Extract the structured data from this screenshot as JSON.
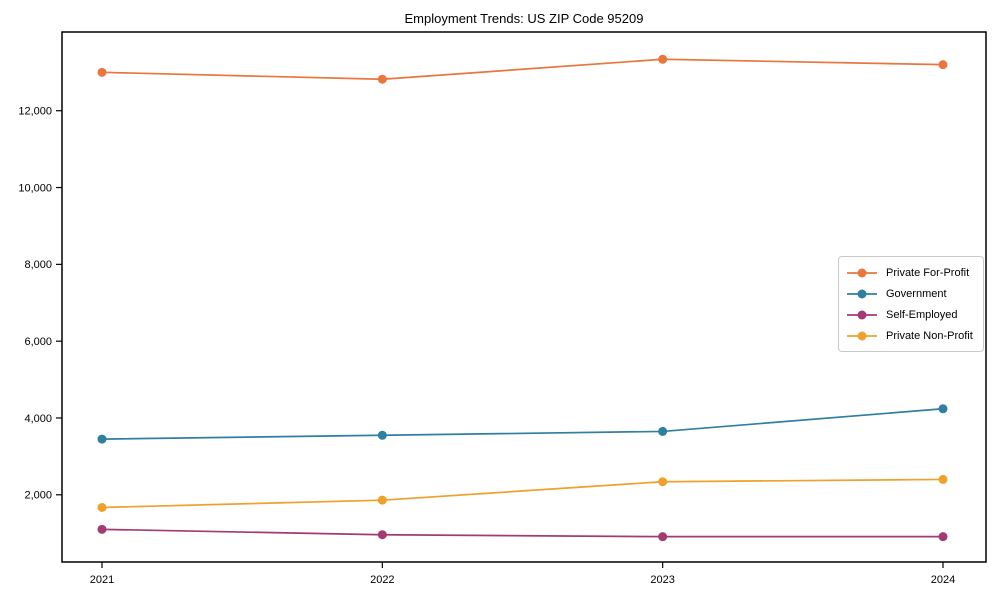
{
  "chart_data": {
    "type": "line",
    "title": "Employment Trends: US ZIP Code 95209",
    "x": [
      2021,
      2022,
      2023,
      2024
    ],
    "x_tick_labels": [
      "2021",
      "2022",
      "2023",
      "2024"
    ],
    "series": [
      {
        "name": "Private For-Profit",
        "color": "#E8763D",
        "values": [
          13000,
          12820,
          13340,
          13200
        ]
      },
      {
        "name": "Government",
        "color": "#2E7FA2",
        "values": [
          3450,
          3550,
          3650,
          4240
        ]
      },
      {
        "name": "Self-Employed",
        "color": "#A23B72",
        "values": [
          1100,
          960,
          910,
          910
        ]
      },
      {
        "name": "Private Non-Profit",
        "color": "#F0A02C",
        "values": [
          1670,
          1860,
          2340,
          2400
        ]
      }
    ],
    "yticks": [
      2000,
      4000,
      6000,
      8000,
      10000,
      12000
    ],
    "ytick_labels": [
      "2,000",
      "4,000",
      "6,000",
      "8,000",
      "10,000",
      "12,000"
    ],
    "ylim": [
      250,
      14050
    ],
    "xlabel": "",
    "ylabel": "",
    "grid": false,
    "marker": "circle",
    "legend_position": "center-right",
    "axis_color": "#000000",
    "background_color": "#ffffff"
  }
}
